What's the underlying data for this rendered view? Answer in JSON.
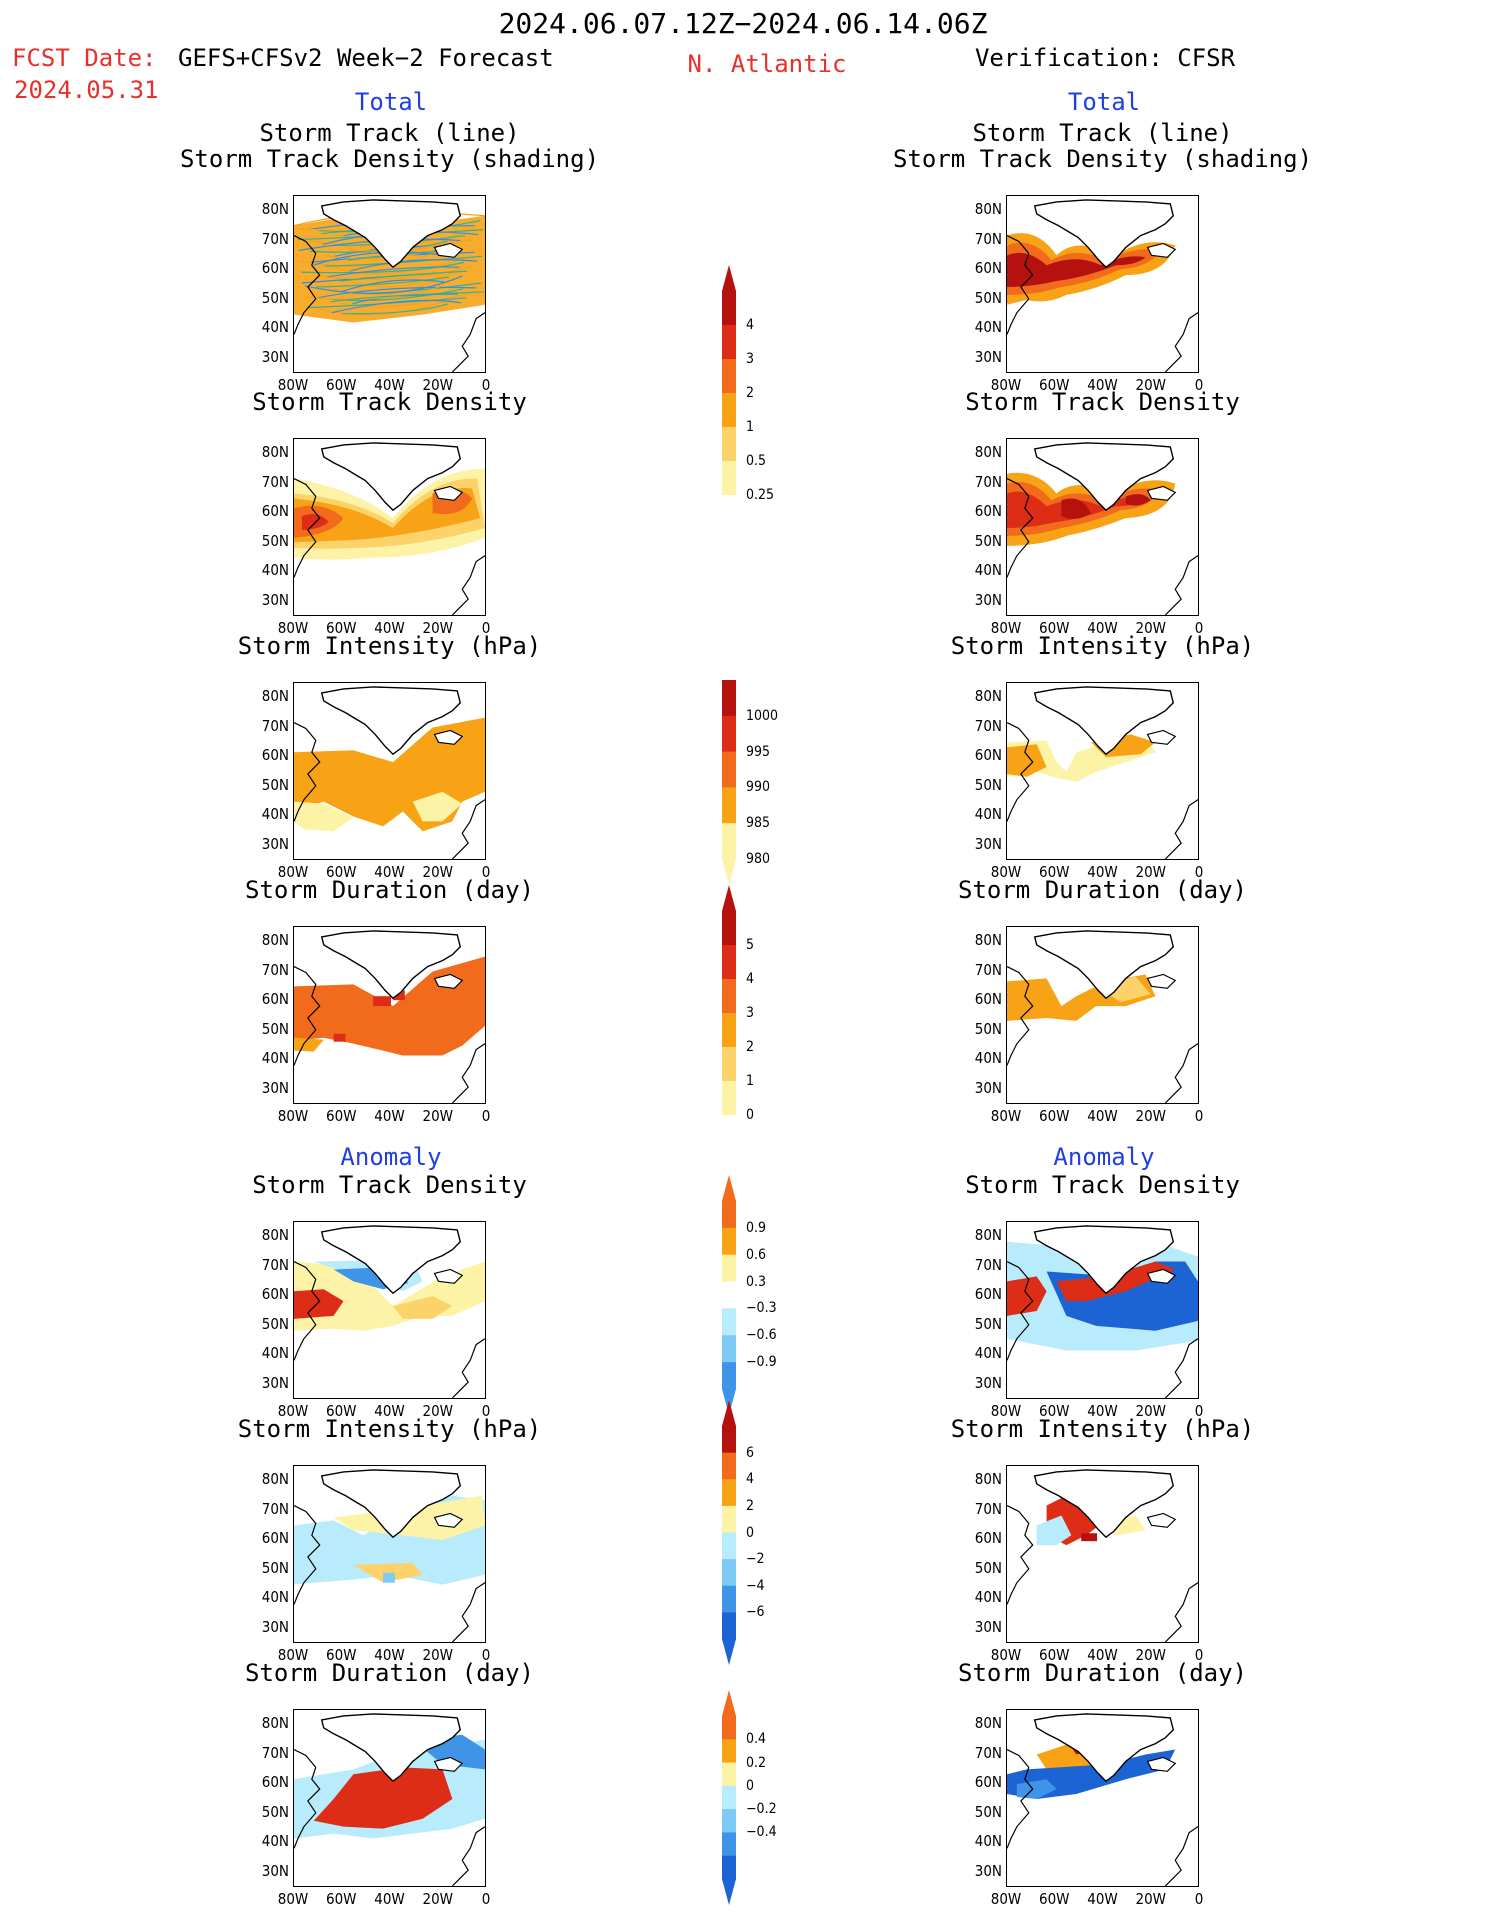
{
  "header": {
    "date_range": "2024.06.07.12Z−2024.06.14.06Z",
    "fcst_label": "FCST Date:",
    "forecast_name": "GEFS+CFSv2 Week−2 Forecast",
    "fcst_date": "2024.05.31",
    "region": "N. Atlantic",
    "verification": "Verification: CFSR",
    "left_total": "Total",
    "right_total": "Total",
    "left_anomaly": "Anomaly",
    "right_anomaly": "Anomaly"
  },
  "panel_titles": {
    "track_line": "Storm Track (line)",
    "track_density_shading": "Storm Track Density (shading)",
    "track_density": "Storm Track Density",
    "intensity": "Storm Intensity (hPa)",
    "duration": "Storm Duration (day)"
  },
  "axes": {
    "lat_ticks": [
      "80N",
      "70N",
      "60N",
      "50N",
      "40N",
      "30N"
    ],
    "lon_ticks": [
      "80W",
      "60W",
      "40W",
      "20W",
      "0"
    ]
  },
  "colors": {
    "lightyellow": "#fdf3a6",
    "yellow": "#fbd36a",
    "orange": "#f8a315",
    "darkorange": "#f26b1d",
    "red": "#de2d16",
    "darkred": "#b5120f",
    "lightblue": "#b8ebfb",
    "skyblue": "#7ccaf5",
    "blue": "#3f94e8",
    "darkblue": "#1c64d4",
    "line_orange": "#f5a11c",
    "line_blue": "#2e8fe6",
    "line_green": "#2fb39a"
  },
  "colorbars": [
    {
      "name": "density",
      "labels": [
        "4",
        "3",
        "2",
        "1",
        "0.5",
        "0.25"
      ],
      "colors": [
        "#fdf3a6",
        "#fbd36a",
        "#f8a315",
        "#f26b1d",
        "#de2d16",
        "#b5120f"
      ],
      "top_arrow": true,
      "bottom_arrow": false
    },
    {
      "name": "intensity",
      "labels": [
        "1000",
        "995",
        "990",
        "985",
        "980"
      ],
      "colors": [
        "#fdf3a6",
        "#f8a315",
        "#f26b1d",
        "#de2d16",
        "#b5120f"
      ],
      "top_arrow": false,
      "bottom_arrow": true
    },
    {
      "name": "duration",
      "labels": [
        "5",
        "4",
        "3",
        "2",
        "1",
        "0"
      ],
      "colors": [
        "#fdf3a6",
        "#fbd36a",
        "#f8a315",
        "#f26b1d",
        "#de2d16",
        "#b5120f"
      ],
      "top_arrow": true,
      "bottom_arrow": false
    },
    {
      "name": "density_anomaly",
      "labels": [
        "0.9",
        "0.6",
        "0.3",
        "−0.3",
        "−0.6",
        "−0.9"
      ],
      "colors": [
        "#3f94e8",
        "#7ccaf5",
        "#b8ebfb",
        "#ffffff",
        "#fdf3a6",
        "#f8a315",
        "#f26b1d"
      ],
      "top_arrow": true,
      "bottom_arrow": true
    },
    {
      "name": "intensity_anomaly",
      "labels": [
        "6",
        "4",
        "2",
        "0",
        "−2",
        "−4",
        "−6"
      ],
      "colors": [
        "#1c64d4",
        "#3f94e8",
        "#7ccaf5",
        "#b8ebfb",
        "#fdf3a6",
        "#f8a315",
        "#f26b1d",
        "#b5120f"
      ],
      "top_arrow": true,
      "bottom_arrow": true
    },
    {
      "name": "duration_anomaly",
      "labels": [
        "0.4",
        "0.2",
        "0",
        "−0.2",
        "−0.4"
      ],
      "colors": [
        "#1c64d4",
        "#3f94e8",
        "#7ccaf5",
        "#b8ebfb",
        "#fdf3a6",
        "#f8a315",
        "#f26b1d"
      ],
      "top_arrow": true,
      "bottom_arrow": true
    }
  ]
}
